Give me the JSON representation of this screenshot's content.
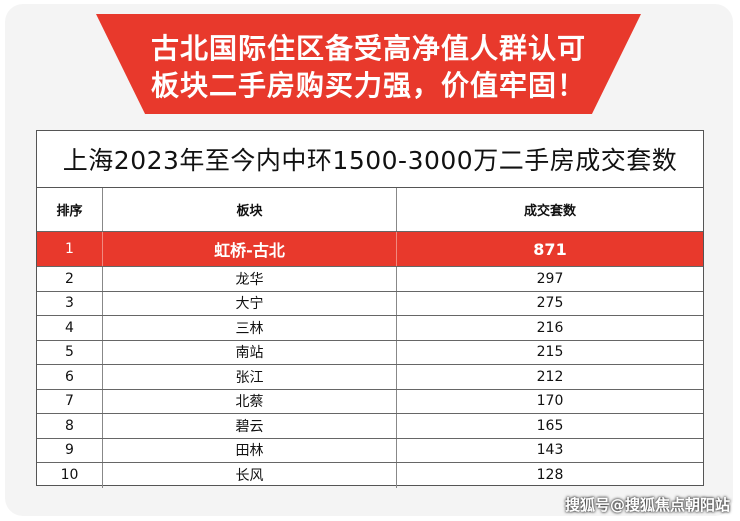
{
  "banner": {
    "line1": "古北国际住区备受高净值人群认可",
    "line2": "板块二手房购买力强，价值牢固！"
  },
  "table": {
    "title": "上海2023年至今内中环1500-3000万二手房成交套数",
    "headers": [
      "排序",
      "板块",
      "成交套数"
    ],
    "rows": [
      [
        "1",
        "虹桥-古北",
        "871"
      ],
      [
        "2",
        "龙华",
        "297"
      ],
      [
        "3",
        "大宁",
        "275"
      ],
      [
        "4",
        "三林",
        "216"
      ],
      [
        "5",
        "南站",
        "215"
      ],
      [
        "6",
        "张江",
        "212"
      ],
      [
        "7",
        "北蔡",
        "170"
      ],
      [
        "8",
        "碧云",
        "165"
      ],
      [
        "9",
        "田林",
        "143"
      ],
      [
        "10",
        "长风",
        "128"
      ]
    ]
  },
  "watermark": "搜狐号@搜狐焦点朝阳站",
  "colors": {
    "accent": "#e8392c"
  }
}
